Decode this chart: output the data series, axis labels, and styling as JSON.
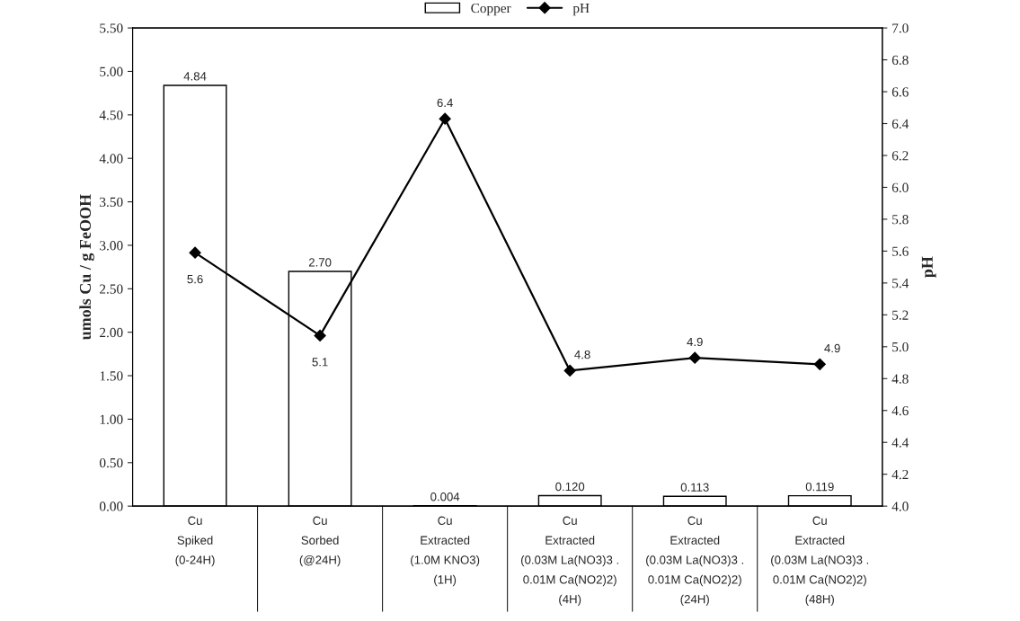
{
  "chart_data": {
    "type": "bar",
    "categories": [
      "Cu\nSpiked\n(0-24H)",
      "Cu\nSorbed\n(@24H)",
      "Cu\nExtracted\n(1.0M KNO3)\n(1H)",
      "Cu\nExtracted\n(0.03M La(NO3)3 .\n0.01M Ca(NO2)2)\n(4H)",
      "Cu\nExtracted\n(0.03M La(NO3)3 .\n0.01M Ca(NO2)2)\n(24H)",
      "Cu\nExtracted\n(0.03M La(NO3)3 .\n0.01M Ca(NO2)2)\n(48H)"
    ],
    "ylabel": "umols Cu / g FeOOH",
    "y2label": "pH",
    "series": [
      {
        "name": "Copper",
        "color": "#ffffff",
        "values": [
          4.84,
          2.7,
          0.004,
          0.12,
          0.113,
          0.119
        ],
        "value_labels": [
          "4.84",
          "2.70",
          "0.004",
          "0.120",
          "0.113",
          "0.119"
        ]
      },
      {
        "name": "pH",
        "type": "line",
        "axis": "y2",
        "color": "#000000",
        "marker": "diamond",
        "values": [
          5.59,
          5.07,
          6.43,
          4.85,
          4.93,
          4.89
        ],
        "value_labels": [
          "5.6",
          "5.1",
          "6.4",
          "4.8",
          "4.9",
          "4.9"
        ]
      }
    ],
    "ylim": [
      0,
      5.5
    ],
    "yticks": [
      {
        "value": 0,
        "label": "0.00"
      },
      {
        "value": 0.5,
        "label": "0.50"
      },
      {
        "value": 1,
        "label": "1.00"
      },
      {
        "value": 1.5,
        "label": "1.50"
      },
      {
        "value": 2,
        "label": "2.00"
      },
      {
        "value": 2.5,
        "label": "2.50"
      },
      {
        "value": 3,
        "label": "3.00"
      },
      {
        "value": 3.5,
        "label": "3.50"
      },
      {
        "value": 4,
        "label": "4.00"
      },
      {
        "value": 4.5,
        "label": "4.50"
      },
      {
        "value": 5,
        "label": "5.00"
      },
      {
        "value": 5.5,
        "label": "5.50"
      }
    ],
    "y2lim": [
      4,
      7
    ],
    "y2ticks": [
      {
        "value": 4,
        "label": "4.0"
      },
      {
        "value": 4.2,
        "label": "4.2"
      },
      {
        "value": 4.4,
        "label": "4.4"
      },
      {
        "value": 4.6,
        "label": "4.6"
      },
      {
        "value": 4.8,
        "label": "4.8"
      },
      {
        "value": 5,
        "label": "5.0"
      },
      {
        "value": 5.2,
        "label": "5.2"
      },
      {
        "value": 5.4,
        "label": "5.4"
      },
      {
        "value": 5.6,
        "label": "5.6"
      },
      {
        "value": 5.8,
        "label": "5.8"
      },
      {
        "value": 6,
        "label": "6.0"
      },
      {
        "value": 6.2,
        "label": "6.2"
      },
      {
        "value": 6.4,
        "label": "6.4"
      },
      {
        "value": 6.6,
        "label": "6.6"
      },
      {
        "value": 6.8,
        "label": "6.8"
      },
      {
        "value": 7,
        "label": "7.0"
      }
    ],
    "grid": false,
    "legend": "top"
  }
}
